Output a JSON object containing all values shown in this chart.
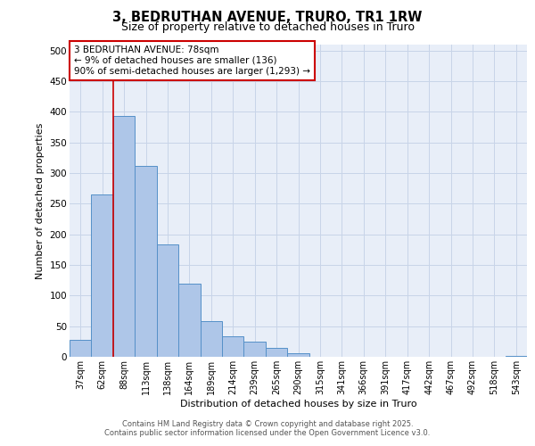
{
  "title1": "3, BEDRUTHAN AVENUE, TRURO, TR1 1RW",
  "title2": "Size of property relative to detached houses in Truro",
  "xlabel": "Distribution of detached houses by size in Truro",
  "ylabel": "Number of detached properties",
  "bar_labels": [
    "37sqm",
    "62sqm",
    "88sqm",
    "113sqm",
    "138sqm",
    "164sqm",
    "189sqm",
    "214sqm",
    "239sqm",
    "265sqm",
    "290sqm",
    "315sqm",
    "341sqm",
    "366sqm",
    "391sqm",
    "417sqm",
    "442sqm",
    "467sqm",
    "492sqm",
    "518sqm",
    "543sqm"
  ],
  "bar_values": [
    28,
    265,
    393,
    312,
    184,
    119,
    59,
    34,
    25,
    14,
    6,
    0,
    0,
    0,
    0,
    0,
    0,
    0,
    0,
    0,
    2
  ],
  "bar_color": "#aec6e8",
  "bar_edge_color": "#5590c8",
  "grid_color": "#c8d4e8",
  "bg_color": "#e8eef8",
  "vline_color": "#cc0000",
  "vline_x": 1.5,
  "annotation_text": "3 BEDRUTHAN AVENUE: 78sqm\n← 9% of detached houses are smaller (136)\n90% of semi-detached houses are larger (1,293) →",
  "annotation_box_facecolor": "#ffffff",
  "annotation_border_color": "#cc0000",
  "ylim": [
    0,
    510
  ],
  "yticks": [
    0,
    50,
    100,
    150,
    200,
    250,
    300,
    350,
    400,
    450,
    500
  ],
  "footer": "Contains HM Land Registry data © Crown copyright and database right 2025.\nContains public sector information licensed under the Open Government Licence v3.0."
}
